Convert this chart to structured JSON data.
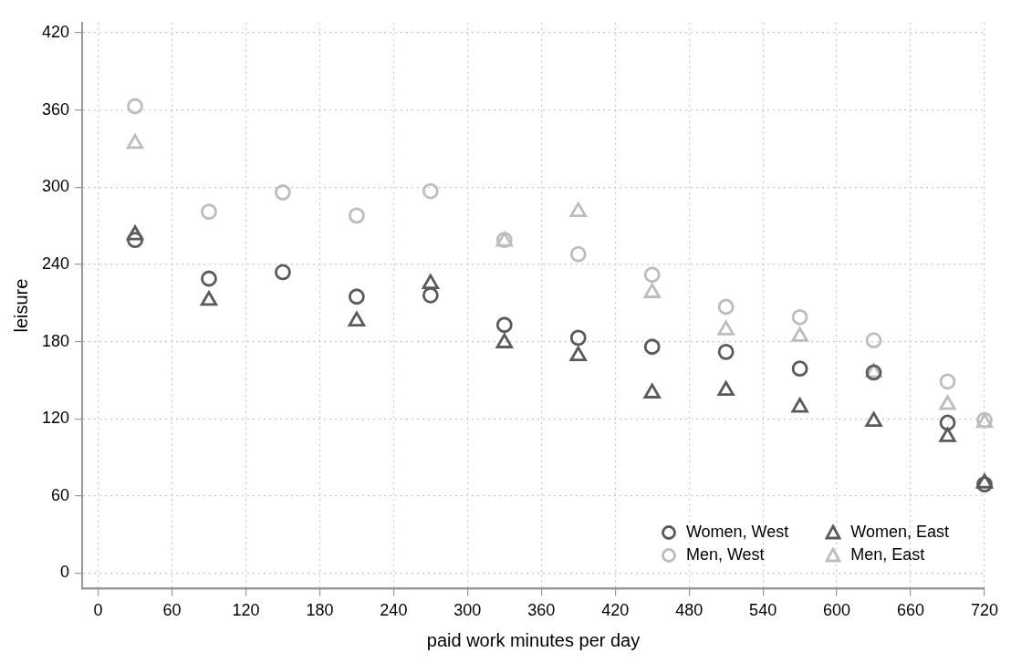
{
  "chart_data": {
    "type": "scatter",
    "xlabel": "paid work minutes per day",
    "ylabel": "leisure",
    "x": [
      30,
      90,
      150,
      210,
      270,
      330,
      390,
      450,
      510,
      570,
      630,
      690,
      720
    ],
    "xlim": [
      -13,
      720
    ],
    "xticks": [
      0,
      60,
      120,
      180,
      240,
      300,
      360,
      420,
      480,
      540,
      600,
      660,
      720
    ],
    "ylim": [
      -12,
      428
    ],
    "yticks": [
      0,
      60,
      120,
      180,
      240,
      300,
      360,
      420
    ],
    "grid": true,
    "legend": "bottom right",
    "series": [
      {
        "name": "Women, West",
        "color": "#5a5a5a",
        "marker": "circle",
        "values": [
          259,
          229,
          234,
          215,
          216,
          193,
          183,
          176,
          172,
          159,
          156,
          117,
          69
        ]
      },
      {
        "name": "Men, West",
        "color": "#bdbdbd",
        "marker": "circle",
        "values": [
          363,
          281,
          296,
          278,
          297,
          259,
          248,
          232,
          207,
          199,
          181,
          149,
          119
        ]
      },
      {
        "name": "Women, East",
        "color": "#5a5a5a",
        "marker": "triangle",
        "values": [
          263,
          212,
          null,
          196,
          225,
          179,
          169,
          140,
          142,
          129,
          118,
          106,
          70
        ]
      },
      {
        "name": "Men, East",
        "color": "#bdbdbd",
        "marker": "triangle",
        "values": [
          334,
          null,
          null,
          null,
          null,
          258,
          281,
          218,
          189,
          184,
          156,
          131,
          117
        ]
      }
    ]
  }
}
